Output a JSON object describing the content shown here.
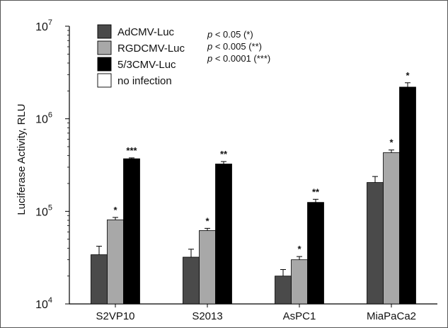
{
  "chart_data": {
    "type": "bar",
    "title": "",
    "ylabel": "Luciferase Activity, RLU",
    "xlabel": "",
    "yscale": "log",
    "ylim": [
      10000,
      10000000
    ],
    "yticks": [
      {
        "value": 10000,
        "base": "10",
        "exp": "4"
      },
      {
        "value": 100000,
        "base": "10",
        "exp": "5"
      },
      {
        "value": 1000000,
        "base": "10",
        "exp": "6"
      },
      {
        "value": 10000000,
        "base": "10",
        "exp": "7"
      }
    ],
    "categories": [
      "S2VP10",
      "S2013",
      "AsPC1",
      "MiaPaCa2"
    ],
    "series": [
      {
        "name": "AdCMV-Luc",
        "color": "#4a4a4a",
        "values": [
          34000,
          32000,
          20000,
          205000
        ],
        "errors": [
          42000,
          39000,
          23500,
          238000
        ],
        "stars": [
          "",
          "",
          "",
          ""
        ]
      },
      {
        "name": "RGDCMV-Luc",
        "color": "#a8a8a8",
        "values": [
          81000,
          62000,
          30000,
          430000
        ],
        "errors": [
          86000,
          65500,
          32500,
          460000
        ],
        "stars": [
          "*",
          "*",
          "*",
          "*"
        ]
      },
      {
        "name": "5/3CMV-Luc",
        "color": "#000000",
        "values": [
          370000,
          325000,
          125000,
          2200000
        ],
        "errors": [
          378000,
          345000,
          135000,
          2450000
        ],
        "stars": [
          "***",
          "**",
          "**",
          "*"
        ]
      },
      {
        "name": "no infection",
        "color": "#ffffff",
        "values": [
          null,
          null,
          null,
          null
        ],
        "errors": [
          null,
          null,
          null,
          null
        ],
        "stars": [
          "",
          "",
          "",
          ""
        ]
      }
    ],
    "legend_position": "top-left",
    "significance": [
      "p < 0.05 (*)",
      "p < 0.005 (**)",
      "p < 0.0001 (***)"
    ],
    "grid": false
  }
}
